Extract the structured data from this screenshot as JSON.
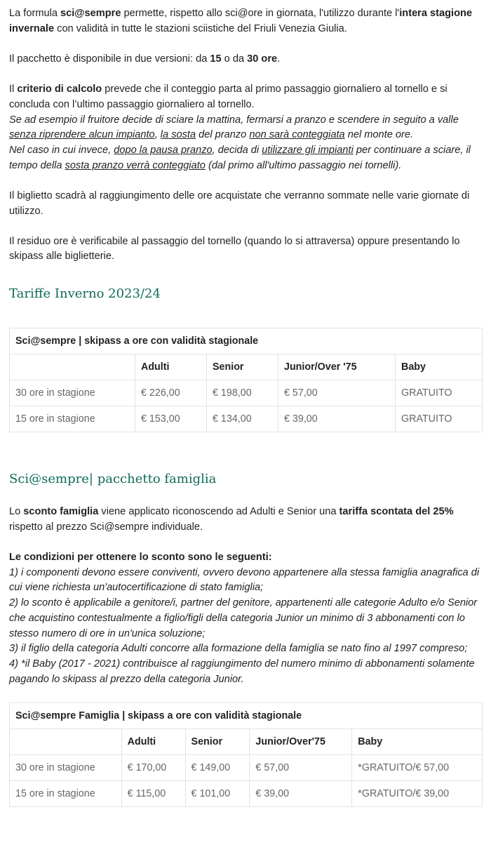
{
  "paragraphs": [
    [
      {
        "t": "La formula "
      },
      {
        "t": "sci@sempre",
        "b": 1
      },
      {
        "t": " permette, rispetto allo sci@ore in giornata, l'utilizzo durante l'"
      },
      {
        "t": "intera stagione invernale",
        "b": 1
      },
      {
        "t": " con validità in tutte le stazioni sciistiche del Friuli Venezia Giulia."
      }
    ],
    [
      {
        "t": "Il pacchetto è disponibile in due versioni: da "
      },
      {
        "t": "15",
        "b": 1
      },
      {
        "t": " o da "
      },
      {
        "t": "30 ore",
        "b": 1
      },
      {
        "t": "."
      }
    ],
    [
      {
        "t": "Il "
      },
      {
        "t": "criterio di calcolo",
        "b": 1
      },
      {
        "t": " prevede che il conteggio parta al primo passaggio giornaliero al tornello e si concluda con l’ultimo passaggio giornaliero al tornello."
      },
      {
        "br": 1
      },
      {
        "t": "Se ad esempio il fruitore decide di sciare la mattina, fermarsi a pranzo e scendere in seguito a valle ",
        "i": 1
      },
      {
        "t": "senza riprendere alcun impianto",
        "i": 1,
        "u": 1
      },
      {
        "t": ", ",
        "i": 1
      },
      {
        "t": "la sosta",
        "i": 1,
        "u": 1
      },
      {
        "t": " del pranzo ",
        "i": 1
      },
      {
        "t": "non sarà conteggiata",
        "i": 1,
        "u": 1
      },
      {
        "t": " nel monte ore.",
        "i": 1
      },
      {
        "br": 1
      },
      {
        "t": "Nel caso in cui invece, ",
        "i": 1
      },
      {
        "t": "dopo la pausa pranzo",
        "i": 1,
        "u": 1
      },
      {
        "t": ", decida di ",
        "i": 1
      },
      {
        "t": "utilizzare gli impianti",
        "i": 1,
        "u": 1
      },
      {
        "t": " per continuare a sciare, il tempo della ",
        "i": 1
      },
      {
        "t": "sosta pranzo verrà conteggiato",
        "i": 1,
        "u": 1
      },
      {
        "t": " (dal primo all'ultimo passaggio nei tornelli).",
        "i": 1
      }
    ],
    [
      {
        "t": "Il biglietto scadrà al raggiungimento delle ore acquistate che verranno sommate nelle varie giornate di utilizzo."
      }
    ],
    [
      {
        "t": "Il residuo ore è verificabile al passaggio del tornello (quando lo si attraversa) oppure presentando lo skipass alle biglietterie."
      }
    ]
  ],
  "section1": {
    "title": "Tariffe Inverno 2023/24",
    "table": {
      "caption": "Sci@sempre | skipass a ore con validità stagionale",
      "headers": [
        "",
        "Adulti",
        "Senior",
        "Junior/Over '75",
        "Baby"
      ],
      "rows": [
        [
          "30 ore in stagione",
          "€ 226,00",
          "€ 198,00",
          "€ 57,00",
          "GRATUITO"
        ],
        [
          "15 ore in stagione",
          "€ 153,00",
          "€ 134,00",
          "€ 39,00",
          "GRATUITO"
        ]
      ]
    }
  },
  "section2": {
    "title": "Sci@sempre| pacchetto famiglia",
    "paragraphs": [
      [
        {
          "t": "Lo "
        },
        {
          "t": "sconto famiglia",
          "b": 1
        },
        {
          "t": " viene applicato riconoscendo ad Adulti e Senior una "
        },
        {
          "t": "tariffa scontata del 25%",
          "b": 1
        },
        {
          "t": " rispetto al prezzo Sci@sempre individuale."
        }
      ],
      [
        {
          "t": "Le condizioni per ottenere lo sconto sono le seguenti:",
          "b": 1
        },
        {
          "br": 1
        },
        {
          "t": "1) i componenti devono essere conviventi, ovvero devono appartenere alla stessa famiglia anagrafica di cui viene richiesta un'autocertificazione di stato famiglia;",
          "i": 1
        },
        {
          "br": 1
        },
        {
          "t": "2) lo sconto è applicabile a genitore/i, partner del genitore, appartenenti alle categorie Adulto e/o Senior che acquistino contestualmente a figlio/figli della categoria Junior un minimo di 3 abbonamenti con lo stesso numero di ore in un'unica soluzione;",
          "i": 1
        },
        {
          "br": 1
        },
        {
          "t": "3) il figlio della categoria Adulti concorre alla formazione della famiglia se nato fino al 1997 compreso;",
          "i": 1
        },
        {
          "br": 1
        },
        {
          "t": "4) *il Baby (2017 - 2021) contribuisce al raggiungimento del numero minimo di abbonamenti solamente pagando lo skipass al prezzo della categoria Junior.",
          "i": 1
        }
      ]
    ],
    "table": {
      "caption": "Sci@sempre Famiglia | skipass a ore con validità stagionale",
      "headers": [
        "",
        "Adulti",
        "Senior",
        "Junior/Over'75",
        "Baby"
      ],
      "rows": [
        [
          "30 ore in stagione",
          "€ 170,00",
          "€ 149,00",
          "€ 57,00",
          "*GRATUITO/€ 57,00"
        ],
        [
          "15 ore in stagione",
          "€ 115,00",
          "€ 101,00",
          "€ 39,00",
          "*GRATUITO/€ 39,00"
        ]
      ]
    }
  },
  "colors": {
    "heading": "#0e6b58",
    "text": "#222222",
    "cell_text": "#666666",
    "border": "#e3e3e3"
  }
}
